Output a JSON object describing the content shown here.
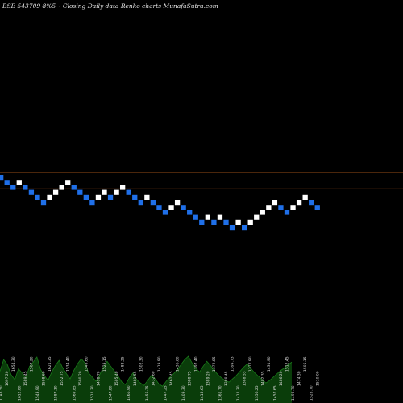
{
  "header": {
    "title": "BSE 543709 8%5~  Closing Daily data  Renko  charts MunafaSutra.com"
  },
  "colors": {
    "background": "#000000",
    "up_brick": "#ffffff",
    "down_brick": "#1f6fe8",
    "reference_line": "#c8641e",
    "volume_fill": "#0a3d0a",
    "volume_line": "#1a7a1a"
  },
  "chart_data": {
    "type": "renko",
    "bricks": [
      {
        "level": 0,
        "dir": "down"
      },
      {
        "level": -1,
        "dir": "down"
      },
      {
        "level": -2,
        "dir": "down"
      },
      {
        "level": -1,
        "dir": "up"
      },
      {
        "level": -2,
        "dir": "down"
      },
      {
        "level": -3,
        "dir": "down"
      },
      {
        "level": -4,
        "dir": "down"
      },
      {
        "level": -5,
        "dir": "down"
      },
      {
        "level": -4,
        "dir": "up"
      },
      {
        "level": -3,
        "dir": "up"
      },
      {
        "level": -2,
        "dir": "up"
      },
      {
        "level": -1,
        "dir": "up"
      },
      {
        "level": -2,
        "dir": "down"
      },
      {
        "level": -3,
        "dir": "down"
      },
      {
        "level": -4,
        "dir": "down"
      },
      {
        "level": -5,
        "dir": "down"
      },
      {
        "level": -4,
        "dir": "up"
      },
      {
        "level": -3,
        "dir": "up"
      },
      {
        "level": -4,
        "dir": "down"
      },
      {
        "level": -3,
        "dir": "up"
      },
      {
        "level": -2,
        "dir": "up"
      },
      {
        "level": -3,
        "dir": "down"
      },
      {
        "level": -4,
        "dir": "down"
      },
      {
        "level": -5,
        "dir": "down"
      },
      {
        "level": -4,
        "dir": "up"
      },
      {
        "level": -5,
        "dir": "down"
      },
      {
        "level": -6,
        "dir": "down"
      },
      {
        "level": -7,
        "dir": "down"
      },
      {
        "level": -6,
        "dir": "up"
      },
      {
        "level": -5,
        "dir": "up"
      },
      {
        "level": -6,
        "dir": "down"
      },
      {
        "level": -7,
        "dir": "down"
      },
      {
        "level": -8,
        "dir": "down"
      },
      {
        "level": -9,
        "dir": "down"
      },
      {
        "level": -8,
        "dir": "up"
      },
      {
        "level": -9,
        "dir": "down"
      },
      {
        "level": -8,
        "dir": "up"
      },
      {
        "level": -9,
        "dir": "down"
      },
      {
        "level": -10,
        "dir": "down"
      },
      {
        "level": -9,
        "dir": "up"
      },
      {
        "level": -10,
        "dir": "down"
      },
      {
        "level": -9,
        "dir": "up"
      },
      {
        "level": -8,
        "dir": "up"
      },
      {
        "level": -7,
        "dir": "up"
      },
      {
        "level": -6,
        "dir": "up"
      },
      {
        "level": -5,
        "dir": "up"
      },
      {
        "level": -6,
        "dir": "down"
      },
      {
        "level": -7,
        "dir": "down"
      },
      {
        "level": -6,
        "dir": "up"
      },
      {
        "level": -5,
        "dir": "up"
      },
      {
        "level": -4,
        "dir": "up"
      },
      {
        "level": -5,
        "dir": "down"
      },
      {
        "level": -6,
        "dir": "down"
      }
    ],
    "reference_lines": [
      1,
      -2.3
    ],
    "volume": [
      38,
      52,
      46,
      34,
      28,
      41,
      36,
      30,
      44,
      49,
      55,
      40,
      33,
      27,
      37,
      45,
      51,
      42,
      35,
      29,
      39,
      47,
      53,
      48,
      36,
      31,
      26,
      34,
      43,
      50,
      44,
      38,
      32,
      25,
      22,
      30,
      36,
      28,
      24,
      21,
      27,
      33,
      29,
      23,
      20,
      26,
      31,
      35,
      40,
      46,
      52,
      56,
      48,
      42,
      37,
      44,
      50,
      45,
      39,
      34,
      30,
      27,
      25,
      29,
      33,
      38,
      43,
      47,
      41,
      36,
      32,
      28,
      24,
      27,
      31,
      35,
      39,
      42,
      46,
      49
    ],
    "volume_labels": [
      "1743.50",
      "1697.20",
      "1654.30",
      "1612.80",
      "1589.45",
      "1567.20",
      "1543.90",
      "1598.60",
      "1621.35",
      "1587.10",
      "1552.75",
      "1534.40",
      "1569.85",
      "1590.20",
      "1545.60",
      "1512.30",
      "1498.70",
      "1523.15",
      "1547.80",
      "1505.40",
      "1488.25",
      "1466.90",
      "1481.55",
      "1502.30",
      "1456.75",
      "1432.60",
      "1419.80",
      "1447.25",
      "1461.45",
      "1436.60",
      "1409.30",
      "1388.75",
      "1397.40",
      "1415.65",
      "1389.20",
      "1372.85",
      "1361.70",
      "1380.45",
      "1394.73",
      "1412.30",
      "1388.55",
      "1377.80",
      "1356.25",
      "1402.35",
      "1431.90",
      "1457.65",
      "1486.20",
      "1512.45",
      "1493.70",
      "1474.30",
      "1505.15",
      "1528.70",
      "1510.00"
    ]
  }
}
